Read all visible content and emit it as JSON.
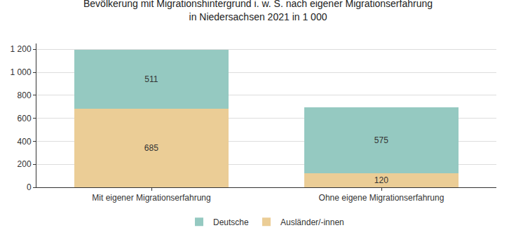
{
  "chart_data": {
    "type": "bar",
    "title": "Bevölkerung mit Migrationshintergrund i. w. S. nach eigener Migrationserfahrung\nin Niedersachsen 2021 in 1 000",
    "categories": [
      "Mit eigener Migrationserfahrung",
      "Ohne eigene Migrationserfahrung"
    ],
    "series": [
      {
        "name": "Ausländer/-innen",
        "color": "#ebcd96",
        "values": [
          685,
          120
        ]
      },
      {
        "name": "Deutsche",
        "color": "#95c9c1",
        "values": [
          511,
          575
        ]
      }
    ],
    "stacked": true,
    "data_labels": true,
    "grid": true,
    "legend": "bottom",
    "ylim": [
      0,
      1250
    ],
    "yticks": [
      0,
      200,
      400,
      600,
      800,
      {
        "value": 1000,
        "label": "1 000"
      },
      {
        "value": 1200,
        "label": "1 200"
      }
    ]
  }
}
